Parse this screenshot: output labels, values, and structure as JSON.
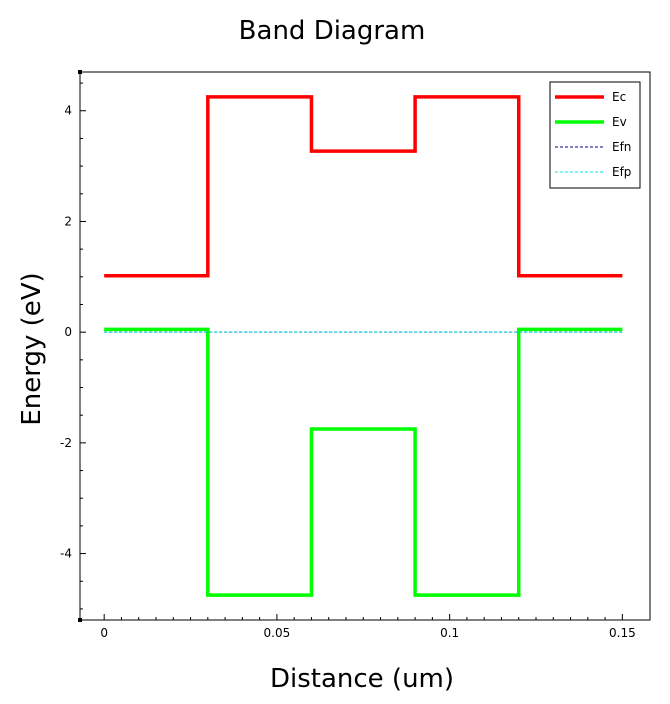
{
  "chart_data": {
    "type": "line",
    "title": "Band Diagram",
    "xlabel": "Distance (um)",
    "ylabel": "Energy (eV)",
    "xlim": [
      -0.007,
      0.158
    ],
    "ylim": [
      -5.2,
      4.7
    ],
    "xticks": [
      0,
      0.05,
      0.1,
      0.15
    ],
    "xtick_labels": [
      "0",
      "0.05",
      "0.1",
      "0.15"
    ],
    "yticks": [
      -4,
      -2,
      0,
      2,
      4
    ],
    "ytick_labels": [
      "-4",
      "-2",
      "0",
      "2",
      "4"
    ],
    "grid": false,
    "legend_position": "top-right",
    "series": [
      {
        "name": "Ec",
        "color": "#ff0000",
        "style": "solid",
        "x": [
          0,
          0.03,
          0.03,
          0.06,
          0.06,
          0.09,
          0.09,
          0.12,
          0.12,
          0.15
        ],
        "y": [
          1.02,
          1.02,
          4.25,
          4.25,
          3.27,
          3.27,
          4.25,
          4.25,
          1.02,
          1.02
        ]
      },
      {
        "name": "Ev",
        "color": "#00ff00",
        "style": "solid",
        "x": [
          0,
          0.03,
          0.03,
          0.06,
          0.06,
          0.09,
          0.09,
          0.12,
          0.12,
          0.15
        ],
        "y": [
          0.05,
          0.05,
          -4.75,
          -4.75,
          -1.75,
          -1.75,
          -4.75,
          -4.75,
          0.05,
          0.05
        ]
      },
      {
        "name": "Efn",
        "color": "#00008b",
        "style": "dashed",
        "x": [
          0,
          0.15
        ],
        "y": [
          0,
          0
        ]
      },
      {
        "name": "Efp",
        "color": "#00e5e5",
        "style": "dashed",
        "x": [
          0,
          0.15
        ],
        "y": [
          0,
          0
        ]
      }
    ]
  }
}
